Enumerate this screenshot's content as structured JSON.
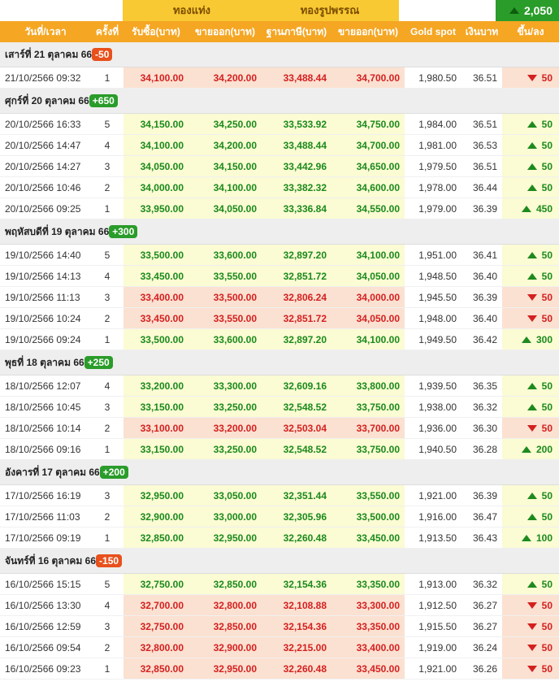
{
  "header": {
    "bar_gold": "ทองแท่ง",
    "ornament_gold": "ทองรูปพรรณ",
    "total_change": "2,050",
    "columns": [
      "วันที่/เวลา",
      "ครั้งที่",
      "รับซื้อ(บาท)",
      "ขายออก(บาท)",
      "ฐานภาษี(บาท)",
      "ขายออก(บาท)",
      "Gold spot",
      "เงินบาท",
      "ขึ้น/ลง"
    ]
  },
  "colors": {
    "up": "#1b8a1b",
    "down": "#d42020",
    "header": "#f5a623",
    "gold": "#f9c933"
  },
  "days": [
    {
      "label": "เสาร์ที่ 21 ตุลาคม 66",
      "change": "-50",
      "dir": "down",
      "rows": [
        {
          "time": "21/10/2566 09:32",
          "round": "1",
          "bar_buy": "34,100.00",
          "bar_sell": "34,200.00",
          "tax_base": "33,488.44",
          "orn_sell": "34,700.00",
          "spot": "1,980.50",
          "thb": "36.51",
          "chg": "50",
          "dir": "down"
        }
      ]
    },
    {
      "label": "ศุกร์ที่ 20 ตุลาคม 66",
      "change": "+650",
      "dir": "up",
      "rows": [
        {
          "time": "20/10/2566 16:33",
          "round": "5",
          "bar_buy": "34,150.00",
          "bar_sell": "34,250.00",
          "tax_base": "33,533.92",
          "orn_sell": "34,750.00",
          "spot": "1,984.00",
          "thb": "36.51",
          "chg": "50",
          "dir": "up"
        },
        {
          "time": "20/10/2566 14:47",
          "round": "4",
          "bar_buy": "34,100.00",
          "bar_sell": "34,200.00",
          "tax_base": "33,488.44",
          "orn_sell": "34,700.00",
          "spot": "1,981.00",
          "thb": "36.53",
          "chg": "50",
          "dir": "up"
        },
        {
          "time": "20/10/2566 14:27",
          "round": "3",
          "bar_buy": "34,050.00",
          "bar_sell": "34,150.00",
          "tax_base": "33,442.96",
          "orn_sell": "34,650.00",
          "spot": "1,979.50",
          "thb": "36.51",
          "chg": "50",
          "dir": "up"
        },
        {
          "time": "20/10/2566 10:46",
          "round": "2",
          "bar_buy": "34,000.00",
          "bar_sell": "34,100.00",
          "tax_base": "33,382.32",
          "orn_sell": "34,600.00",
          "spot": "1,978.00",
          "thb": "36.44",
          "chg": "50",
          "dir": "up"
        },
        {
          "time": "20/10/2566 09:25",
          "round": "1",
          "bar_buy": "33,950.00",
          "bar_sell": "34,050.00",
          "tax_base": "33,336.84",
          "orn_sell": "34,550.00",
          "spot": "1,979.00",
          "thb": "36.39",
          "chg": "450",
          "dir": "up"
        }
      ]
    },
    {
      "label": "พฤหัสบดีที่ 19 ตุลาคม 66",
      "change": "+300",
      "dir": "up",
      "rows": [
        {
          "time": "19/10/2566 14:40",
          "round": "5",
          "bar_buy": "33,500.00",
          "bar_sell": "33,600.00",
          "tax_base": "32,897.20",
          "orn_sell": "34,100.00",
          "spot": "1,951.00",
          "thb": "36.41",
          "chg": "50",
          "dir": "up"
        },
        {
          "time": "19/10/2566 14:13",
          "round": "4",
          "bar_buy": "33,450.00",
          "bar_sell": "33,550.00",
          "tax_base": "32,851.72",
          "orn_sell": "34,050.00",
          "spot": "1,948.50",
          "thb": "36.40",
          "chg": "50",
          "dir": "up"
        },
        {
          "time": "19/10/2566 11:13",
          "round": "3",
          "bar_buy": "33,400.00",
          "bar_sell": "33,500.00",
          "tax_base": "32,806.24",
          "orn_sell": "34,000.00",
          "spot": "1,945.50",
          "thb": "36.39",
          "chg": "50",
          "dir": "down"
        },
        {
          "time": "19/10/2566 10:24",
          "round": "2",
          "bar_buy": "33,450.00",
          "bar_sell": "33,550.00",
          "tax_base": "32,851.72",
          "orn_sell": "34,050.00",
          "spot": "1,948.00",
          "thb": "36.40",
          "chg": "50",
          "dir": "down"
        },
        {
          "time": "19/10/2566 09:24",
          "round": "1",
          "bar_buy": "33,500.00",
          "bar_sell": "33,600.00",
          "tax_base": "32,897.20",
          "orn_sell": "34,100.00",
          "spot": "1,949.50",
          "thb": "36.42",
          "chg": "300",
          "dir": "up"
        }
      ]
    },
    {
      "label": "พุธที่ 18 ตุลาคม 66",
      "change": "+250",
      "dir": "up",
      "rows": [
        {
          "time": "18/10/2566 12:07",
          "round": "4",
          "bar_buy": "33,200.00",
          "bar_sell": "33,300.00",
          "tax_base": "32,609.16",
          "orn_sell": "33,800.00",
          "spot": "1,939.50",
          "thb": "36.35",
          "chg": "50",
          "dir": "up"
        },
        {
          "time": "18/10/2566 10:45",
          "round": "3",
          "bar_buy": "33,150.00",
          "bar_sell": "33,250.00",
          "tax_base": "32,548.52",
          "orn_sell": "33,750.00",
          "spot": "1,938.00",
          "thb": "36.32",
          "chg": "50",
          "dir": "up"
        },
        {
          "time": "18/10/2566 10:14",
          "round": "2",
          "bar_buy": "33,100.00",
          "bar_sell": "33,200.00",
          "tax_base": "32,503.04",
          "orn_sell": "33,700.00",
          "spot": "1,936.00",
          "thb": "36.30",
          "chg": "50",
          "dir": "down"
        },
        {
          "time": "18/10/2566 09:16",
          "round": "1",
          "bar_buy": "33,150.00",
          "bar_sell": "33,250.00",
          "tax_base": "32,548.52",
          "orn_sell": "33,750.00",
          "spot": "1,940.50",
          "thb": "36.28",
          "chg": "200",
          "dir": "up"
        }
      ]
    },
    {
      "label": "อังคารที่ 17 ตุลาคม 66",
      "change": "+200",
      "dir": "up",
      "rows": [
        {
          "time": "17/10/2566 16:19",
          "round": "3",
          "bar_buy": "32,950.00",
          "bar_sell": "33,050.00",
          "tax_base": "32,351.44",
          "orn_sell": "33,550.00",
          "spot": "1,921.00",
          "thb": "36.39",
          "chg": "50",
          "dir": "up"
        },
        {
          "time": "17/10/2566 11:03",
          "round": "2",
          "bar_buy": "32,900.00",
          "bar_sell": "33,000.00",
          "tax_base": "32,305.96",
          "orn_sell": "33,500.00",
          "spot": "1,916.00",
          "thb": "36.47",
          "chg": "50",
          "dir": "up"
        },
        {
          "time": "17/10/2566 09:19",
          "round": "1",
          "bar_buy": "32,850.00",
          "bar_sell": "32,950.00",
          "tax_base": "32,260.48",
          "orn_sell": "33,450.00",
          "spot": "1,913.50",
          "thb": "36.43",
          "chg": "100",
          "dir": "up"
        }
      ]
    },
    {
      "label": "จันทร์ที่ 16 ตุลาคม 66",
      "change": "-150",
      "dir": "down",
      "rows": [
        {
          "time": "16/10/2566 15:15",
          "round": "5",
          "bar_buy": "32,750.00",
          "bar_sell": "32,850.00",
          "tax_base": "32,154.36",
          "orn_sell": "33,350.00",
          "spot": "1,913.00",
          "thb": "36.32",
          "chg": "50",
          "dir": "up"
        },
        {
          "time": "16/10/2566 13:30",
          "round": "4",
          "bar_buy": "32,700.00",
          "bar_sell": "32,800.00",
          "tax_base": "32,108.88",
          "orn_sell": "33,300.00",
          "spot": "1,912.50",
          "thb": "36.27",
          "chg": "50",
          "dir": "down"
        },
        {
          "time": "16/10/2566 12:59",
          "round": "3",
          "bar_buy": "32,750.00",
          "bar_sell": "32,850.00",
          "tax_base": "32,154.36",
          "orn_sell": "33,350.00",
          "spot": "1,915.50",
          "thb": "36.27",
          "chg": "50",
          "dir": "down"
        },
        {
          "time": "16/10/2566 09:54",
          "round": "2",
          "bar_buy": "32,800.00",
          "bar_sell": "32,900.00",
          "tax_base": "32,215.00",
          "orn_sell": "33,400.00",
          "spot": "1,919.00",
          "thb": "36.24",
          "chg": "50",
          "dir": "down"
        },
        {
          "time": "16/10/2566 09:23",
          "round": "1",
          "bar_buy": "32,850.00",
          "bar_sell": "32,950.00",
          "tax_base": "32,260.48",
          "orn_sell": "33,450.00",
          "spot": "1,921.00",
          "thb": "36.26",
          "chg": "50",
          "dir": "down"
        }
      ]
    }
  ]
}
